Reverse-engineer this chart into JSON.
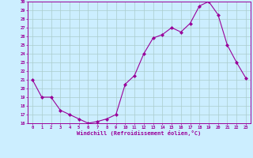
{
  "x": [
    0,
    1,
    2,
    3,
    4,
    5,
    6,
    7,
    8,
    9,
    10,
    11,
    12,
    13,
    14,
    15,
    16,
    17,
    18,
    19,
    20,
    21,
    22,
    23
  ],
  "y": [
    21,
    19,
    19,
    17.5,
    17,
    16.5,
    16,
    16.2,
    16.5,
    17,
    20.5,
    21.5,
    24,
    25.8,
    26.2,
    27.0,
    26.5,
    27.5,
    29.5,
    30,
    28.5,
    25,
    23,
    21.2
  ],
  "line_color": "#990099",
  "marker": "D",
  "marker_size": 2,
  "bg_color": "#cceeff",
  "grid_color": "#aacccc",
  "xlabel": "Windchill (Refroidissement éolien,°C)",
  "xlabel_color": "#990099",
  "tick_color": "#990099",
  "ylim": [
    16,
    30
  ],
  "xlim": [
    -0.5,
    23.5
  ],
  "yticks": [
    16,
    17,
    18,
    19,
    20,
    21,
    22,
    23,
    24,
    25,
    26,
    27,
    28,
    29,
    30
  ],
  "xticks": [
    0,
    1,
    2,
    3,
    4,
    5,
    6,
    7,
    8,
    9,
    10,
    11,
    12,
    13,
    14,
    15,
    16,
    17,
    18,
    19,
    20,
    21,
    22,
    23
  ],
  "spine_color": "#990099"
}
